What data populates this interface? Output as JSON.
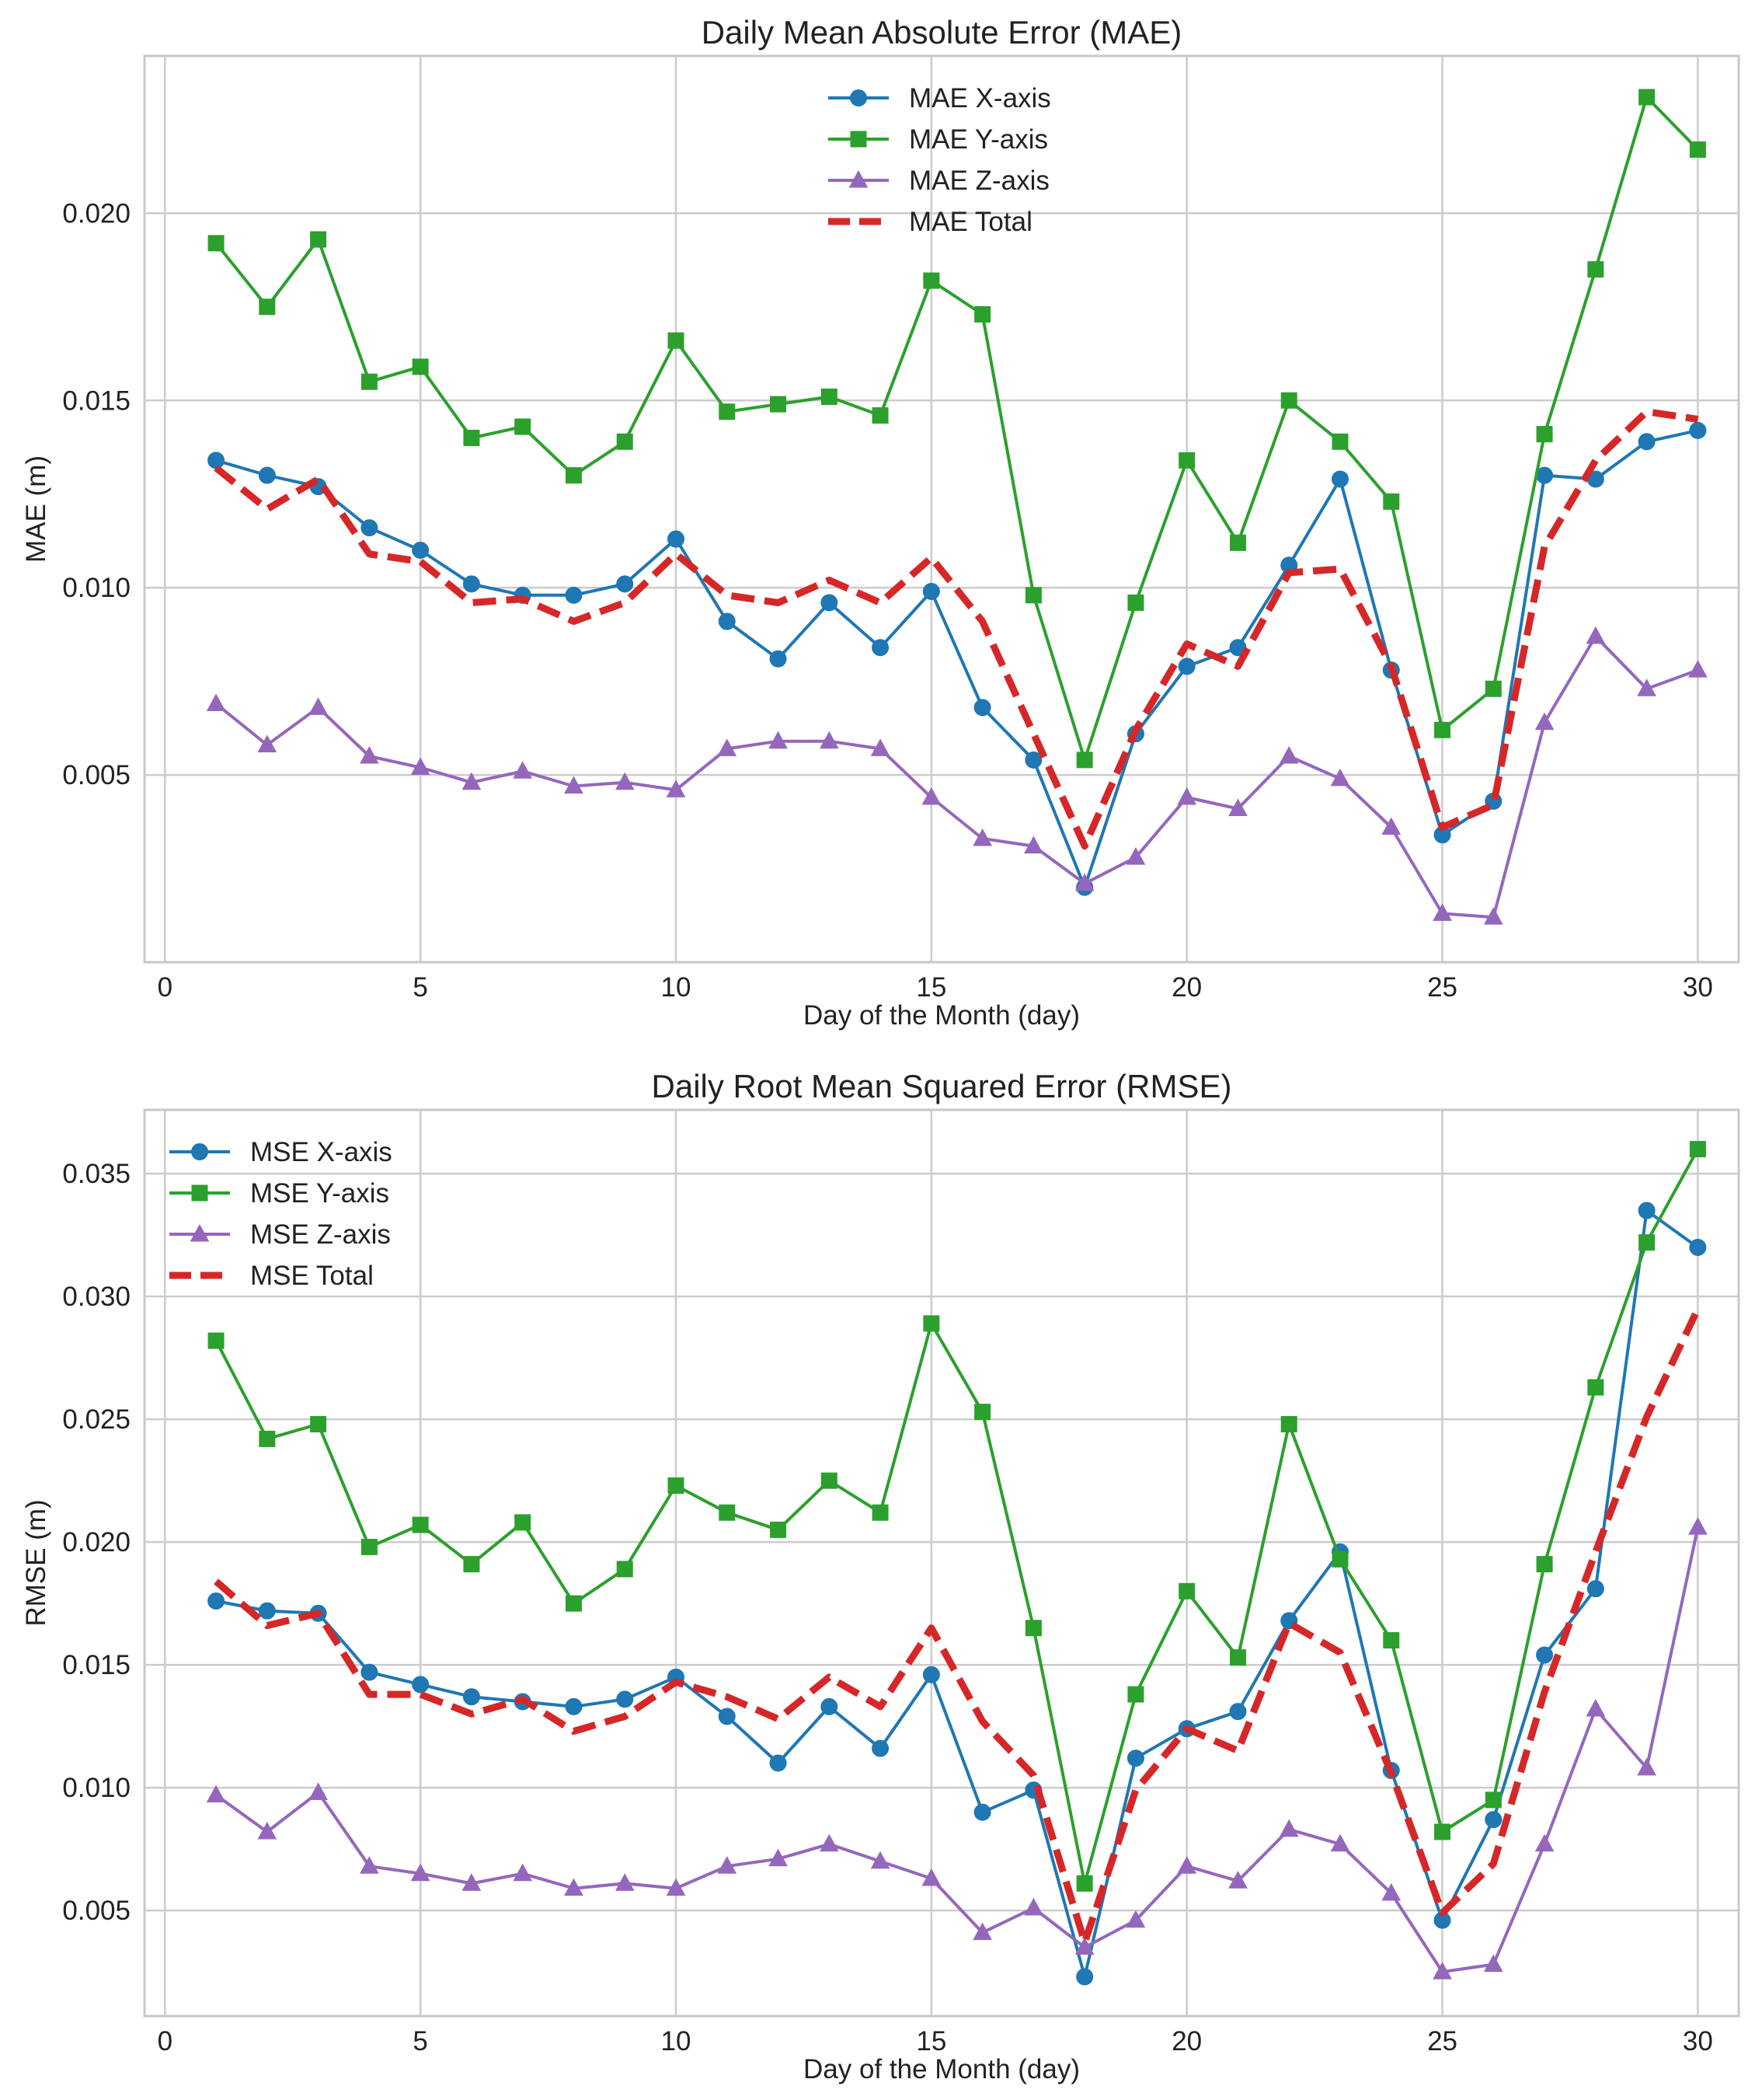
{
  "chart_data": [
    {
      "type": "line",
      "title": "Daily Mean Absolute Error (MAE)",
      "xlabel": "Day of the Month (day)",
      "ylabel": "MAE (m)",
      "xlim": [
        -0.4,
        30.8
      ],
      "ylim": [
        0.0,
        0.0242
      ],
      "xticks": [
        0,
        5,
        10,
        15,
        20,
        25,
        30
      ],
      "yticks": [
        0.005,
        0.01,
        0.015,
        0.02
      ],
      "ytick_labels": [
        "0.005",
        "0.010",
        "0.015",
        "0.020"
      ],
      "grid": true,
      "legend_position": "upper-center",
      "x": [
        1,
        2,
        3,
        4,
        5,
        6,
        7,
        8,
        9,
        10,
        11,
        12,
        13,
        14,
        15,
        16,
        17,
        18,
        19,
        20,
        21,
        22,
        23,
        24,
        25,
        26,
        27,
        28,
        29,
        30
      ],
      "series": [
        {
          "name": "MAE X-axis",
          "color": "#1f77b4",
          "marker": "circle",
          "dash": "solid",
          "values": [
            0.0134,
            0.013,
            0.0127,
            0.0116,
            0.011,
            0.0101,
            0.0098,
            0.0098,
            0.0101,
            0.0113,
            0.0091,
            0.0081,
            0.0096,
            0.0084,
            0.0099,
            0.0068,
            0.0054,
            0.002,
            0.0061,
            0.0079,
            0.0084,
            0.0106,
            0.0129,
            0.0078,
            0.0034,
            0.0043,
            0.013,
            0.0129,
            0.0139,
            0.0142
          ]
        },
        {
          "name": "MAE Y-axis",
          "color": "#2ca02c",
          "marker": "square",
          "dash": "solid",
          "values": [
            0.0192,
            0.0175,
            0.0193,
            0.0155,
            0.0159,
            0.014,
            0.0143,
            0.013,
            0.0139,
            0.0166,
            0.0147,
            0.0149,
            0.0151,
            0.0146,
            0.0182,
            0.0173,
            0.0098,
            0.0054,
            0.0096,
            0.0134,
            0.0112,
            0.015,
            0.0139,
            0.0123,
            0.0062,
            0.0073,
            0.0141,
            0.0185,
            0.0231,
            0.0217
          ]
        },
        {
          "name": "MAE Z-axis",
          "color": "#9467bd",
          "marker": "triangle",
          "dash": "solid",
          "values": [
            0.0069,
            0.0058,
            0.0068,
            0.0055,
            0.0052,
            0.0048,
            0.0051,
            0.0047,
            0.0048,
            0.0046,
            0.0057,
            0.0059,
            0.0059,
            0.0057,
            0.0044,
            0.0033,
            0.0031,
            0.0021,
            0.0028,
            0.0044,
            0.0041,
            0.0055,
            0.0049,
            0.0036,
            0.0013,
            0.0012,
            0.0064,
            0.0087,
            0.0073,
            0.0078
          ]
        },
        {
          "name": "MAE Total",
          "color": "#d62728",
          "marker": "none",
          "dash": "dashed",
          "values": [
            0.0132,
            0.0121,
            0.0129,
            0.0109,
            0.0107,
            0.0096,
            0.0097,
            0.0091,
            0.0096,
            0.0109,
            0.0098,
            0.0096,
            0.0102,
            0.0096,
            0.0108,
            0.0091,
            0.0061,
            0.0031,
            0.0062,
            0.0085,
            0.0079,
            0.0104,
            0.0105,
            0.0079,
            0.0036,
            0.0042,
            0.0111,
            0.0134,
            0.0147,
            0.0145
          ]
        }
      ]
    },
    {
      "type": "line",
      "title": "Daily Root Mean Squared Error (RMSE)",
      "xlabel": "Day of the Month (day)",
      "ylabel": "RMSE (m)",
      "xlim": [
        -0.4,
        30.8
      ],
      "ylim": [
        0.0007,
        0.0376
      ],
      "xticks": [
        0,
        5,
        10,
        15,
        20,
        25,
        30
      ],
      "yticks": [
        0.005,
        0.01,
        0.015,
        0.02,
        0.025,
        0.03,
        0.035
      ],
      "ytick_labels": [
        "0.005",
        "0.010",
        "0.015",
        "0.020",
        "0.025",
        "0.030",
        "0.035"
      ],
      "grid": true,
      "legend_position": "upper-left",
      "x": [
        1,
        2,
        3,
        4,
        5,
        6,
        7,
        8,
        9,
        10,
        11,
        12,
        13,
        14,
        15,
        16,
        17,
        18,
        19,
        20,
        21,
        22,
        23,
        24,
        25,
        26,
        27,
        28,
        29,
        30
      ],
      "series": [
        {
          "name": "MSE X-axis",
          "color": "#1f77b4",
          "marker": "circle",
          "dash": "solid",
          "values": [
            0.0176,
            0.0172,
            0.0171,
            0.0147,
            0.0142,
            0.0137,
            0.0135,
            0.0133,
            0.0136,
            0.0145,
            0.0129,
            0.011,
            0.0133,
            0.0116,
            0.0146,
            0.009,
            0.0099,
            0.0023,
            0.0112,
            0.0124,
            0.0131,
            0.0168,
            0.0196,
            0.0107,
            0.0046,
            0.0087,
            0.0154,
            0.0181,
            0.0335,
            0.032
          ]
        },
        {
          "name": "MSE Y-axis",
          "color": "#2ca02c",
          "marker": "square",
          "dash": "solid",
          "values": [
            0.0282,
            0.0242,
            0.0248,
            0.0198,
            0.0207,
            0.0191,
            0.0208,
            0.0175,
            0.0189,
            0.0223,
            0.0212,
            0.0205,
            0.0225,
            0.0212,
            0.0289,
            0.0253,
            0.0165,
            0.0061,
            0.0138,
            0.018,
            0.0153,
            0.0248,
            0.0193,
            0.016,
            0.0082,
            0.0095,
            0.0191,
            0.0263,
            0.0322,
            0.036
          ]
        },
        {
          "name": "MSE Z-axis",
          "color": "#9467bd",
          "marker": "triangle",
          "dash": "solid",
          "values": [
            0.0097,
            0.0082,
            0.0098,
            0.0068,
            0.0065,
            0.0061,
            0.0065,
            0.0059,
            0.0061,
            0.0059,
            0.0068,
            0.0071,
            0.0077,
            0.007,
            0.0063,
            0.0041,
            0.0051,
            0.0035,
            0.0046,
            0.0068,
            0.0062,
            0.0083,
            0.0077,
            0.0057,
            0.0025,
            0.0028,
            0.0077,
            0.0132,
            0.0108,
            0.0206
          ]
        },
        {
          "name": "MSE Total",
          "color": "#d62728",
          "marker": "none",
          "dash": "dashed",
          "values": [
            0.0184,
            0.0166,
            0.0171,
            0.0138,
            0.0138,
            0.013,
            0.0136,
            0.0123,
            0.0129,
            0.0143,
            0.0137,
            0.0128,
            0.0145,
            0.0133,
            0.0165,
            0.0127,
            0.0105,
            0.0037,
            0.0099,
            0.0124,
            0.0115,
            0.0167,
            0.0155,
            0.0106,
            0.0049,
            0.0069,
            0.0139,
            0.0196,
            0.0251,
            0.0295
          ]
        }
      ]
    }
  ]
}
